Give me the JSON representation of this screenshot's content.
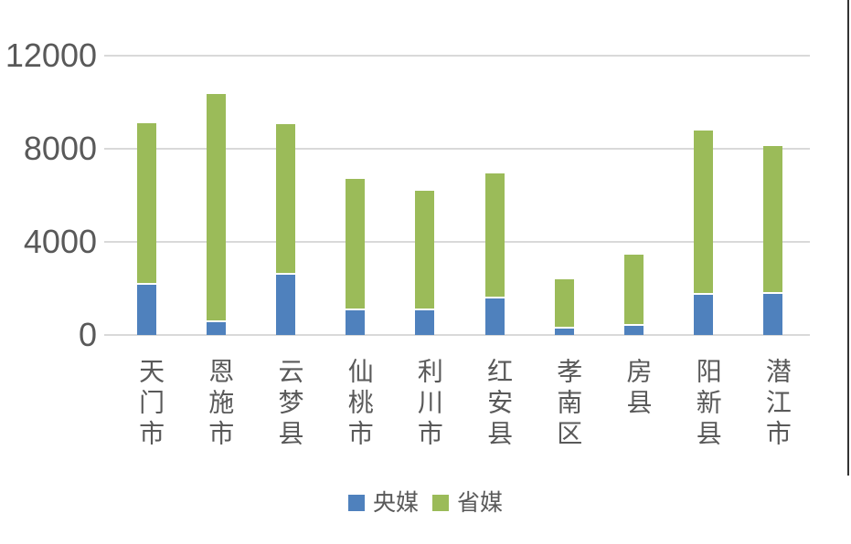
{
  "chart_data": {
    "type": "bar",
    "stacked": true,
    "title": "",
    "xlabel": "",
    "ylabel": "",
    "categories": [
      "天门市",
      "恩施市",
      "云梦县",
      "仙桃市",
      "利川市",
      "红安县",
      "孝南区",
      "房县",
      "阳新县",
      "潜江市"
    ],
    "series": [
      {
        "name": "央媒",
        "color": "#4f81bd",
        "values": [
          2150,
          530,
          2570,
          1070,
          1040,
          1570,
          260,
          390,
          1720,
          1750
        ]
      },
      {
        "name": "省媒",
        "color": "#9bbb59",
        "values": [
          6950,
          9820,
          6480,
          5630,
          5160,
          5380,
          2140,
          3060,
          7080,
          6350
        ]
      }
    ],
    "ylim": [
      0,
      12000
    ],
    "yticks": [
      0,
      4000,
      8000,
      12000
    ],
    "grid": true,
    "legend_position": "bottom"
  },
  "style": {
    "text_color": "#595959",
    "gridline_color": "#d9d9d9",
    "background_color": "#ffffff",
    "right_border_color": "#333333"
  }
}
